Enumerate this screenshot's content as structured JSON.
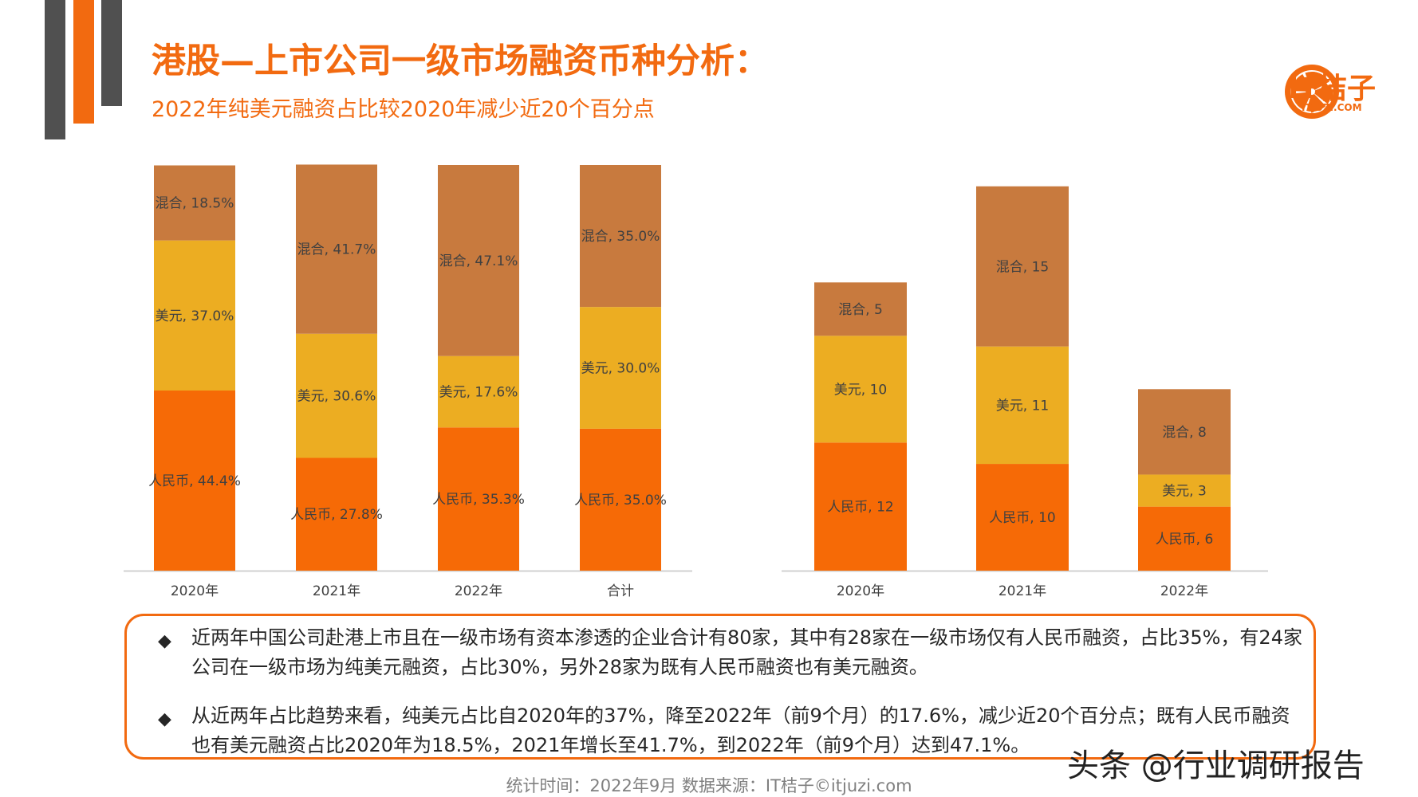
{
  "title": "港股—上市公司一级市场融资币种分析：",
  "subtitle": "2022年纯美元融资占比较2020年减少近20个百分点",
  "logo": {
    "text": "IT桔子",
    "sub": "ITJUZI.COM",
    "icon": "orange-slice-icon"
  },
  "colors": {
    "rmb": "#f66a06",
    "usd": "#ecad22",
    "mixed": "#c87a3e",
    "accent": "#f26a10",
    "axis": "#d0d0d0"
  },
  "chart_data": [
    {
      "type": "bar",
      "stacked": true,
      "percent": true,
      "categories": [
        "2020年",
        "2021年",
        "2022年",
        "合计"
      ],
      "ylim": [
        0,
        100
      ],
      "series": [
        {
          "name": "人民币",
          "values": [
            44.4,
            27.8,
            35.3,
            35.0
          ],
          "labels": [
            "人民币, 44.4%",
            "人民币, 27.8%",
            "人民币, 35.3%",
            "人民币, 35.0%"
          ]
        },
        {
          "name": "美元",
          "values": [
            37.0,
            30.6,
            17.6,
            30.0
          ],
          "labels": [
            "美元, 37.0%",
            "美元, 30.6%",
            "美元, 17.6%",
            "美元, 30.0%"
          ]
        },
        {
          "name": "混合",
          "values": [
            18.5,
            41.7,
            47.1,
            35.0
          ],
          "labels": [
            "混合, 18.5%",
            "混合, 41.7%",
            "混合, 47.1%",
            "混合, 35.0%"
          ]
        }
      ]
    },
    {
      "type": "bar",
      "stacked": true,
      "categories": [
        "2020年",
        "2021年",
        "2022年"
      ],
      "ylim": [
        0,
        38
      ],
      "series": [
        {
          "name": "人民币",
          "values": [
            12,
            10,
            6
          ],
          "labels": [
            "人民币, 12",
            "人民币, 10",
            "人民币, 6"
          ]
        },
        {
          "name": "美元",
          "values": [
            10,
            11,
            3
          ],
          "labels": [
            "美元, 10",
            "美元, 11",
            "美元, 3"
          ]
        },
        {
          "name": "混合",
          "values": [
            5,
            15,
            8
          ],
          "labels": [
            "混合, 5",
            "混合, 15",
            "混合, 8"
          ]
        }
      ]
    }
  ],
  "notes": [
    "近两年中国公司赴港上市且在一级市场有资本渗透的企业合计有80家，其中有28家在一级市场仅有人民币融资，占比35%，有24家公司在一级市场为纯美元融资，占比30%，另外28家为既有人民币融资也有美元融资。",
    "从近两年占比趋势来看，纯美元占比自2020年的37%，降至2022年（前9个月）的17.6%，减少近20个百分点；既有人民币融资也有美元融资占比2020年为18.5%，2021年增长至41.7%，到2022年（前9个月）达到47.1%。"
  ],
  "bullet_icon": "diamond-bullet-icon",
  "footer": "统计时间：2022年9月   数据来源：IT桔子©itjuzi.com",
  "watermark": "头条 @行业调研报告"
}
